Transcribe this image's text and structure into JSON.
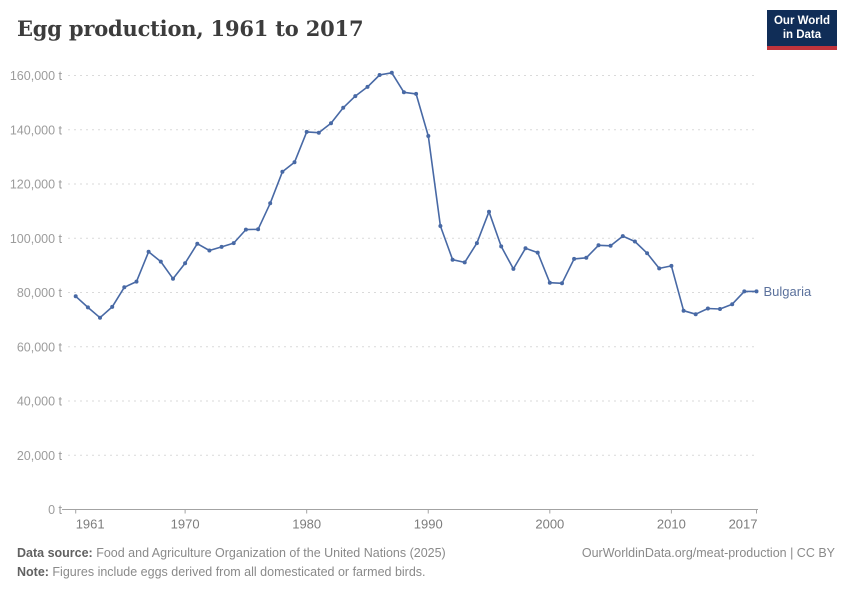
{
  "header": {
    "title": "Egg production, 1961 to 2017",
    "logo_line1": "Our World",
    "logo_line2": "in Data"
  },
  "chart_data": {
    "type": "line",
    "title": "Egg production, 1961 to 2017",
    "entity": "Bulgaria",
    "unit": "t",
    "grid": true,
    "legend_position": "end-of-line",
    "ylim": [
      0,
      160000
    ],
    "y_ticks": [
      0,
      20000,
      40000,
      60000,
      80000,
      100000,
      120000,
      140000,
      160000
    ],
    "x_ticks": [
      1961,
      1970,
      1980,
      1990,
      2000,
      2010,
      2017
    ],
    "x": [
      1961,
      1962,
      1963,
      1964,
      1965,
      1966,
      1967,
      1968,
      1969,
      1970,
      1971,
      1972,
      1973,
      1974,
      1975,
      1976,
      1977,
      1978,
      1979,
      1980,
      1981,
      1982,
      1983,
      1984,
      1985,
      1986,
      1987,
      1988,
      1989,
      1990,
      1991,
      1992,
      1993,
      1994,
      1995,
      1996,
      1997,
      1998,
      1999,
      2000,
      2001,
      2002,
      2003,
      2004,
      2005,
      2006,
      2007,
      2008,
      2009,
      2010,
      2011,
      2012,
      2013,
      2014,
      2015,
      2016,
      2017
    ],
    "values": [
      78600,
      74500,
      70700,
      74700,
      81900,
      84000,
      95000,
      91400,
      85100,
      90800,
      98000,
      95500,
      96800,
      98200,
      103200,
      103300,
      112900,
      124500,
      128000,
      139200,
      138900,
      142400,
      148100,
      152400,
      155800,
      160200,
      161000,
      153800,
      153200,
      137700,
      104500,
      92100,
      91100,
      98200,
      109800,
      97000,
      88700,
      96300,
      94700,
      83600,
      83400,
      92400,
      92800,
      97400,
      97200,
      100800,
      98800,
      94500,
      88900,
      89800,
      73300,
      72000,
      74100,
      73900,
      75700,
      80400,
      80400
    ]
  },
  "colors": {
    "line": "#4869a5",
    "entity_label": "#5b719c",
    "grid": "#dadada",
    "axis_line": "#a3a3a3",
    "y_tick_text": "#9c9c9c",
    "x_tick_text": "#7d7d7d",
    "logo_bg": "#102d57",
    "logo_red": "#c0343c"
  },
  "footer": {
    "source_label": "Data source:",
    "source_text": " Food and Agriculture Organization of the United Nations (2025)",
    "note_label": "Note:",
    "note_text": " Figures include eggs derived from all domesticated or farmed birds.",
    "link": "OurWorldinData.org/meat-production | CC BY"
  }
}
